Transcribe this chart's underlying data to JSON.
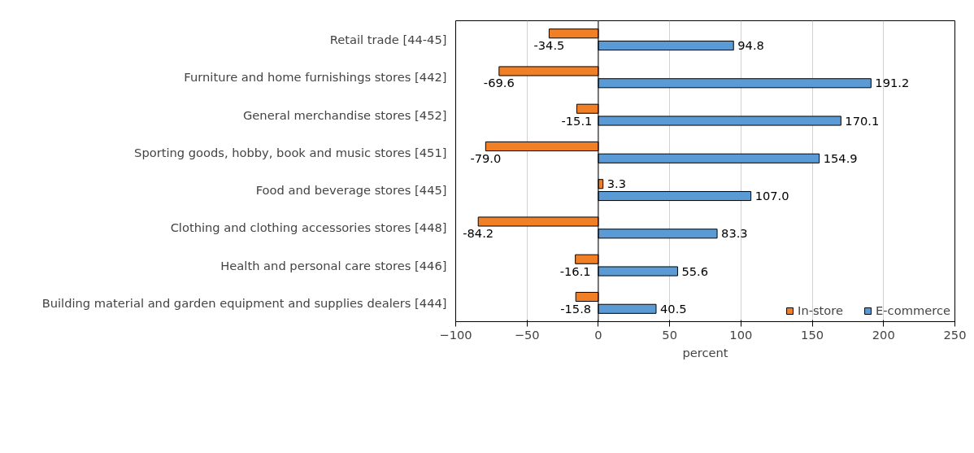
{
  "chart_data": {
    "type": "bar",
    "orientation": "horizontal",
    "xlabel": "percent",
    "categories": [
      "Retail trade [44-45]",
      "Furniture and home furnishings stores [442]",
      "General merchandise stores [452]",
      "Sporting goods, hobby, book and music stores [451]",
      "Food and beverage stores [445]",
      "Clothing and clothing accessories stores [448]",
      "Health and personal care stores [446]",
      "Building material and garden equipment and supplies dealers [444]"
    ],
    "series": [
      {
        "name": "In-store",
        "color": "#f07f26",
        "values": [
          -34.5,
          -69.6,
          -15.1,
          -79.0,
          3.3,
          -84.2,
          -16.1,
          -15.8
        ],
        "value_labels": [
          "-34.5",
          "-69.6",
          "-15.1",
          "-79.0",
          "3.3",
          "-84.2",
          "-16.1",
          "-15.8"
        ]
      },
      {
        "name": "E-commerce",
        "color": "#5b9bd5",
        "values": [
          94.8,
          191.2,
          170.1,
          154.9,
          107.0,
          83.3,
          55.6,
          40.5
        ],
        "value_labels": [
          "94.8",
          "191.2",
          "170.1",
          "154.9",
          "107.0",
          "83.3",
          "55.6",
          "40.5"
        ]
      }
    ],
    "xlim": [
      -100,
      250
    ],
    "xticks": [
      -100,
      -50,
      0,
      50,
      100,
      150,
      200,
      250
    ],
    "grid": "x",
    "legend": "bottom right"
  }
}
